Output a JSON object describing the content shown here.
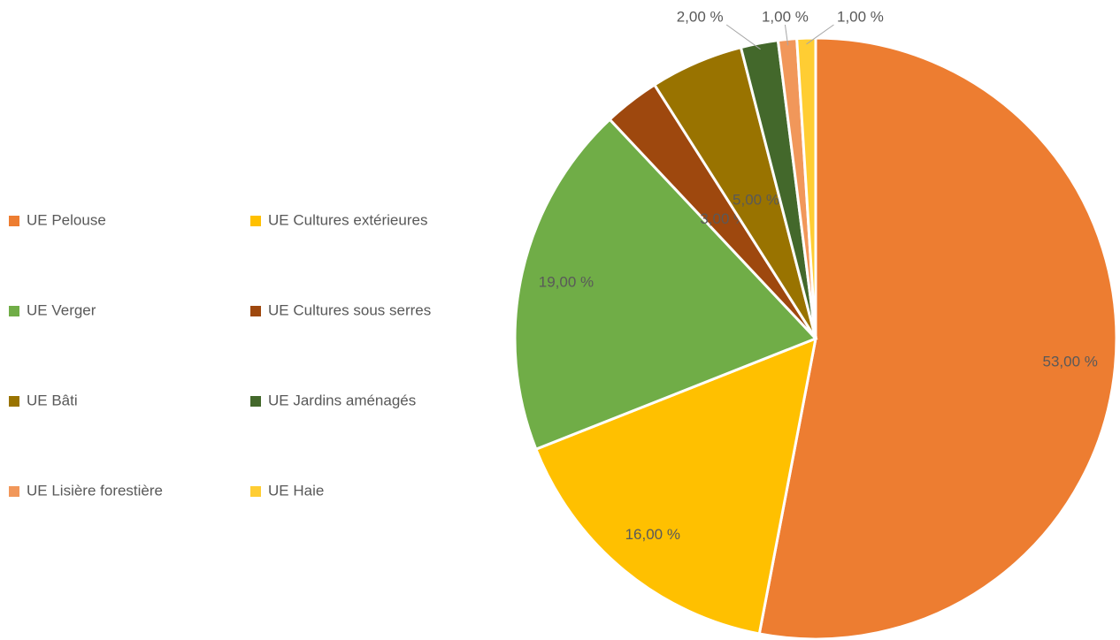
{
  "chart_data": {
    "type": "pie",
    "categories": [
      "UE Pelouse",
      "UE Cultures extérieures",
      "UE Verger",
      "UE Cultures sous serres",
      "UE Bâti",
      "UE Jardins aménagés",
      "UE Lisière forestière",
      "UE Haie"
    ],
    "values": [
      53,
      16,
      19,
      3,
      5,
      2,
      1,
      1
    ],
    "value_labels": [
      "53,00 %",
      "16,00 %",
      "19,00 %",
      "3,00 %",
      "5,00 %",
      "2,00 %",
      "1,00 %",
      "1,00 %"
    ],
    "colors": [
      "#ed7d31",
      "#ffc000",
      "#70ad47",
      "#9e480e",
      "#997300",
      "#43682b",
      "#f1975a",
      "#ffcd33"
    ],
    "legend": "left"
  }
}
